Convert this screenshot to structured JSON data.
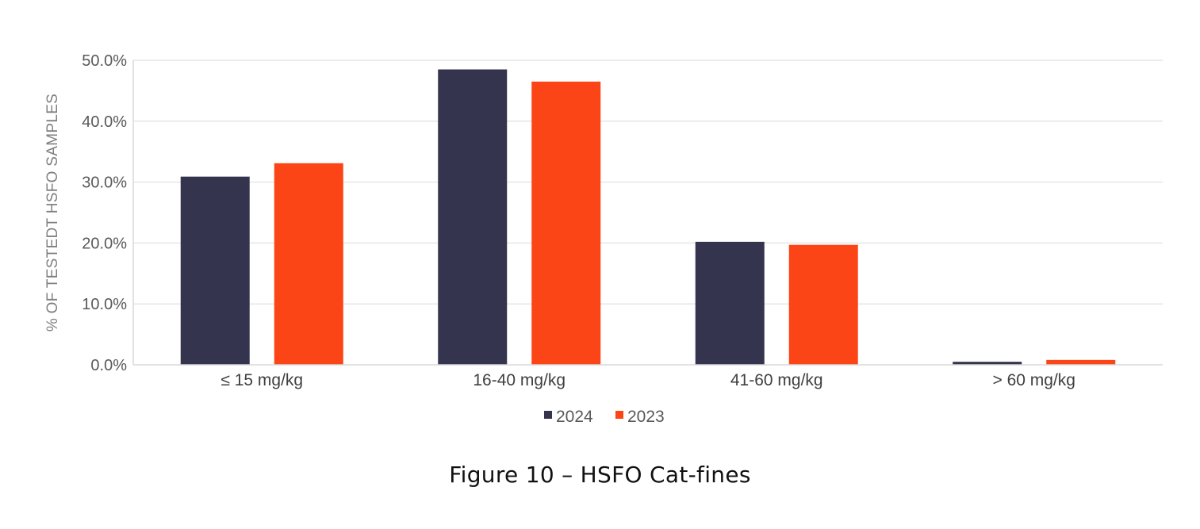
{
  "chart_data": {
    "type": "bar",
    "title": "",
    "xlabel": "",
    "ylabel": "% OF TESTEDT HSFO SAMPLES",
    "categories": [
      "≤ 15 mg/kg",
      "16-40 mg/kg",
      "41-60 mg/kg",
      "> 60 mg/kg"
    ],
    "series": [
      {
        "name": "2024",
        "color": "#34344e",
        "values": [
          30.9,
          48.5,
          20.2,
          0.5
        ]
      },
      {
        "name": "2023",
        "color": "#fc4516",
        "values": [
          33.1,
          46.5,
          19.7,
          0.8
        ]
      }
    ],
    "ylim": [
      0,
      50
    ],
    "yticks": [
      {
        "value": 0,
        "label": "0.0%"
      },
      {
        "value": 10,
        "label": "10.0%"
      },
      {
        "value": 20,
        "label": "20.0%"
      },
      {
        "value": 30,
        "label": "30.0%"
      },
      {
        "value": 40,
        "label": "40.0%"
      },
      {
        "value": 50,
        "label": "50.0%"
      }
    ],
    "grid": true,
    "legend_position": "bottom-center"
  },
  "figure": {
    "caption": "Figure 10 – HSFO Cat-fines"
  }
}
